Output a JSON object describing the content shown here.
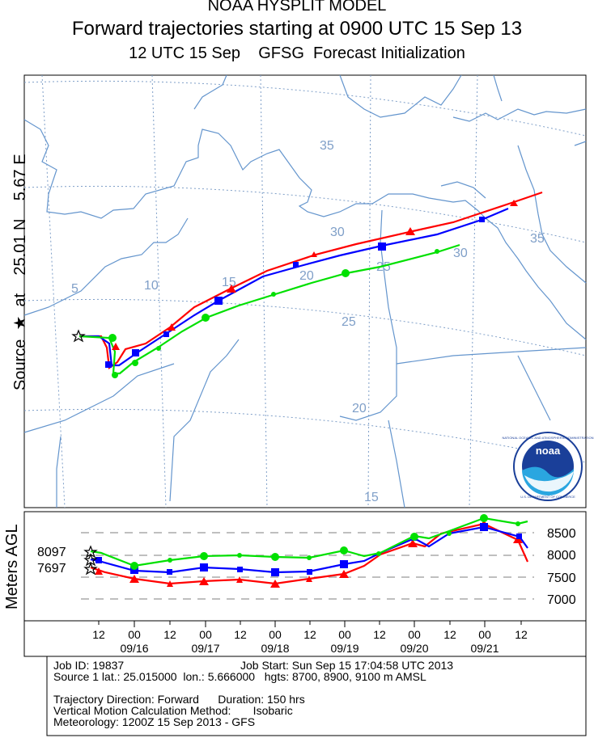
{
  "header": {
    "line1": "NOAA HYSPLIT MODEL",
    "line2": "Forward trajectories starting at 0900 UTC 15 Sep 13",
    "line3": "12 UTC 15 Sep    GFSG  Forecast Initialization"
  },
  "side_label": "Source  ★  at    25.01 N    5.67 E",
  "vertical_label": "Meters AGL",
  "map": {
    "lat_labels": [
      "35",
      "30",
      "25",
      "20",
      "15"
    ],
    "lon_labels": [
      "5",
      "10",
      "15",
      "20",
      "25",
      "30",
      "35"
    ],
    "colors": {
      "red": "#ff0000",
      "blue": "#0000ff",
      "green": "#00e000",
      "boundary": "#6495cd",
      "grid": "#7f9fc8"
    }
  },
  "height_panel": {
    "source_heights": [
      "8097",
      "7697"
    ],
    "y_ticks": [
      "8500",
      "8000",
      "7500",
      "7000"
    ]
  },
  "time_axis": {
    "hour_labels": [
      "12",
      "00",
      "12",
      "00",
      "12",
      "00",
      "12",
      "00",
      "12",
      "00",
      "12",
      "00",
      "12"
    ],
    "date_labels": [
      "09/16",
      "09/17",
      "09/18",
      "09/19",
      "09/20",
      "09/21"
    ]
  },
  "info": {
    "job_id": "Job ID: 19837",
    "job_start": "Job Start: Sun Sep 15 17:04:58 UTC 2013",
    "source": "Source 1 lat.: 25.015000  lon.: 5.666000   hgts: 8700, 8900, 9100 m AMSL",
    "direction": "Trajectory Direction: Forward      Duration: 150 hrs",
    "vertical": "Vertical Motion Calculation Method:       Isobaric",
    "meteorology": "Meteorology: 1200Z 15 Sep 2013 - GFS"
  },
  "logo": {
    "text": "noaa",
    "ring_text": "NATIONAL OCEANIC AND ATMOSPHERIC ADMINISTRATION",
    "bottom_text": "U.S. DEPARTMENT OF COMMERCE"
  }
}
